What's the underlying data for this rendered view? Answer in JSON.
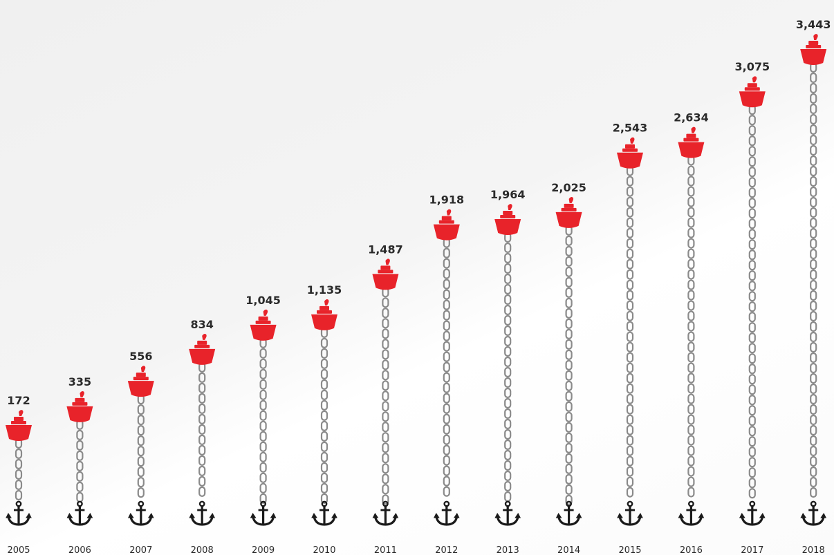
{
  "chart_data": {
    "type": "bar",
    "categories": [
      "2005",
      "2006",
      "2007",
      "2008",
      "2009",
      "2010",
      "2011",
      "2012",
      "2013",
      "2014",
      "2015",
      "2016",
      "2017",
      "2018"
    ],
    "values": [
      172,
      335,
      556,
      834,
      1045,
      1135,
      1487,
      1918,
      1964,
      2025,
      2543,
      2634,
      3075,
      3443
    ],
    "value_labels": [
      "172",
      "335",
      "556",
      "834",
      "1,045",
      "1,135",
      "1,487",
      "1,918",
      "1,964",
      "2,025",
      "2,543",
      "2,634",
      "3,075",
      "3,443"
    ],
    "title": "",
    "xlabel": "",
    "ylabel": "",
    "ylim": [
      0,
      3500
    ],
    "grid": false,
    "legend": "none",
    "mark_icon": "ship-icon",
    "base_icon": "anchor-icon",
    "chain_icon": "chain-icon",
    "colors": {
      "ship": "#e8232a",
      "chain": "#8a8a8a",
      "anchor": "#1a1a1a",
      "text": "#2b2b2b"
    }
  }
}
